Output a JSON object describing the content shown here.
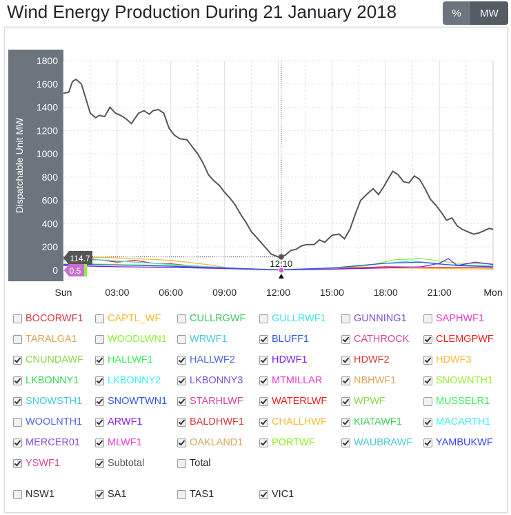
{
  "header": {
    "title": "Wind Energy Production During 21 January 2018",
    "unit_buttons": [
      {
        "label": "%",
        "active": false
      },
      {
        "label": "MW",
        "active": true
      }
    ]
  },
  "chart_data": {
    "type": "line",
    "title": "Wind Energy Production During 21 January 2018",
    "ylabel": "Dispatchable Unit MW",
    "xlabel": "",
    "ylim": [
      0,
      1800
    ],
    "yticks": [
      "0",
      "200",
      "400",
      "600",
      "800",
      "1000",
      "1200",
      "1400",
      "1600",
      "1800"
    ],
    "xticks": [
      "Sun",
      "03:00",
      "06:00",
      "09:00",
      "12:00",
      "15:00",
      "18:00",
      "21:00",
      "Mon"
    ],
    "x_unit": "hours since Sun 00:00",
    "grid": true,
    "cursor": {
      "time": "12:10",
      "subtotal_value": "114.7",
      "min_value": "0.5"
    },
    "series": [
      {
        "name": "Subtotal",
        "color": "#555555",
        "x": [
          0,
          0.3,
          0.5,
          0.7,
          1,
          1.3,
          1.5,
          1.8,
          2,
          2.3,
          2.6,
          2.9,
          3.2,
          3.5,
          3.8,
          4.2,
          4.5,
          4.8,
          5,
          5.3,
          5.6,
          5.9,
          6.2,
          6.5,
          6.9,
          7.2,
          7.5,
          7.8,
          8.1,
          8.4,
          8.7,
          9,
          9.3,
          9.6,
          9.9,
          10.2,
          10.5,
          10.8,
          11.2,
          11.6,
          12,
          12.17,
          12.4,
          12.7,
          13,
          13.3,
          13.6,
          14,
          14.3,
          14.6,
          15,
          15.4,
          15.7,
          16,
          16.3,
          16.6,
          17,
          17.3,
          17.6,
          17.9,
          18.2,
          18.4,
          18.7,
          19,
          19.3,
          19.6,
          19.9,
          20.2,
          20.5,
          20.8,
          21.1,
          21.4,
          21.7,
          22,
          22.3,
          22.6,
          22.9,
          23.2,
          23.5,
          23.8,
          24
        ],
        "y": [
          1520,
          1530,
          1620,
          1640,
          1600,
          1450,
          1350,
          1310,
          1330,
          1320,
          1400,
          1350,
          1330,
          1300,
          1260,
          1350,
          1370,
          1340,
          1370,
          1380,
          1350,
          1220,
          1160,
          1130,
          1120,
          1060,
          1000,
          920,
          820,
          770,
          730,
          670,
          620,
          560,
          480,
          410,
          330,
          280,
          210,
          140,
          115,
          114.7,
          130,
          170,
          180,
          210,
          220,
          220,
          260,
          240,
          300,
          310,
          270,
          350,
          480,
          600,
          660,
          700,
          650,
          720,
          800,
          850,
          820,
          760,
          750,
          810,
          780,
          700,
          610,
          560,
          500,
          430,
          450,
          380,
          350,
          330,
          310,
          320,
          340,
          360,
          350
        ]
      },
      {
        "name": "CAPTL_WF",
        "color": "#f5b82e",
        "x": [
          0,
          2,
          4,
          6,
          8,
          9,
          10,
          12,
          15,
          18,
          21,
          24
        ],
        "y": [
          110,
          110,
          100,
          85,
          50,
          25,
          10,
          5,
          10,
          20,
          15,
          10
        ]
      },
      {
        "name": "CLEMGPWF",
        "color": "#ee1c1c",
        "x": [
          0,
          1,
          2,
          3,
          4,
          5,
          6,
          7,
          9,
          12,
          15,
          18,
          21,
          24
        ],
        "y": [
          95,
          100,
          90,
          70,
          85,
          60,
          55,
          40,
          20,
          5,
          15,
          30,
          25,
          20
        ]
      },
      {
        "name": "LKBONNY2",
        "color": "#3ee6e6",
        "x": [
          0,
          2,
          4,
          6,
          8,
          10,
          12,
          15,
          18,
          19.5,
          21,
          24
        ],
        "y": [
          80,
          90,
          70,
          50,
          30,
          15,
          5,
          20,
          60,
          80,
          50,
          40
        ]
      },
      {
        "name": "SNOWNTH1",
        "color": "#8ff03a",
        "x": [
          0,
          3,
          6,
          9,
          12,
          15,
          17,
          18.5,
          20,
          22,
          24
        ],
        "y": [
          60,
          50,
          40,
          20,
          5,
          15,
          40,
          90,
          100,
          60,
          55
        ]
      },
      {
        "name": "HDWF1",
        "color": "#7a1cf0",
        "x": [
          0,
          3,
          6,
          9,
          12,
          15,
          18,
          20,
          21,
          21.5,
          22,
          23,
          24
        ],
        "y": [
          40,
          30,
          25,
          15,
          3,
          10,
          20,
          30,
          60,
          100,
          40,
          70,
          50
        ]
      },
      {
        "name": "BLUFF1",
        "color": "#2f55e8",
        "x": [
          0,
          3,
          6,
          9,
          12,
          15,
          18,
          20,
          22,
          24
        ],
        "y": [
          50,
          45,
          35,
          20,
          3,
          20,
          60,
          70,
          40,
          30
        ]
      }
    ]
  },
  "units": [
    {
      "label": "BOCORWF1",
      "color": "#d9363e",
      "checked": false
    },
    {
      "label": "CAPTL_WF",
      "color": "#f5b82e",
      "checked": false
    },
    {
      "label": "CULLRGWF",
      "color": "#3cc85f",
      "checked": false
    },
    {
      "label": "GULLRWF1",
      "color": "#3ee6e6",
      "checked": false
    },
    {
      "label": "GUNNING1",
      "color": "#7a4fd6",
      "checked": false
    },
    {
      "label": "SAPHWF1",
      "color": "#e83ec0",
      "checked": false
    },
    {
      "label": "TARALGA1",
      "color": "#d9a55a",
      "checked": false
    },
    {
      "label": "WOODLWN1",
      "color": "#8ff03a",
      "checked": false
    },
    {
      "label": "WRWF1",
      "color": "#45c8d8",
      "checked": false
    },
    {
      "label": "BLUFF1",
      "color": "#2f55e8",
      "checked": true
    },
    {
      "label": "CATHROCK",
      "color": "#d6449a",
      "checked": true
    },
    {
      "label": "CLEMGPWF",
      "color": "#ee1c1c",
      "checked": true
    },
    {
      "label": "CNUNDAWF",
      "color": "#8bd64a",
      "checked": true
    },
    {
      "label": "HALLWF1",
      "color": "#3cf05a",
      "checked": true
    },
    {
      "label": "HALLWF2",
      "color": "#4a6ad8",
      "checked": true
    },
    {
      "label": "HDWF1",
      "color": "#7a1cf0",
      "checked": true
    },
    {
      "label": "HDWF2",
      "color": "#d63a3a",
      "checked": true
    },
    {
      "label": "HDWF3",
      "color": "#f5b83a",
      "checked": true
    },
    {
      "label": "LKBONNY1",
      "color": "#3cd65a",
      "checked": true
    },
    {
      "label": "LKBONNY2",
      "color": "#3cf0f0",
      "checked": true
    },
    {
      "label": "LKBONNY3",
      "color": "#7a4fd6",
      "checked": true
    },
    {
      "label": "MTMILLAR",
      "color": "#f03cc8",
      "checked": true
    },
    {
      "label": "NBHWF1",
      "color": "#d9a55a",
      "checked": true
    },
    {
      "label": "SNOWNTH1",
      "color": "#9af03a",
      "checked": true
    },
    {
      "label": "SNOWSTH1",
      "color": "#45c8d8",
      "checked": true
    },
    {
      "label": "SNOWTWN1",
      "color": "#2f55e8",
      "checked": true
    },
    {
      "label": "STARHLWF",
      "color": "#d6449a",
      "checked": true
    },
    {
      "label": "WATERLWF",
      "color": "#f01c1c",
      "checked": true
    },
    {
      "label": "WPWF",
      "color": "#8bd64a",
      "checked": true
    },
    {
      "label": "MUSSELR1",
      "color": "#3cf05a",
      "checked": false
    },
    {
      "label": "WOOLNTH1",
      "color": "#4a6ad8",
      "checked": false
    },
    {
      "label": "ARWF1",
      "color": "#8a1cf0",
      "checked": true
    },
    {
      "label": "BALDHWF1",
      "color": "#d63a3a",
      "checked": true
    },
    {
      "label": "CHALLHWF",
      "color": "#f5b83a",
      "checked": true
    },
    {
      "label": "KIATAWF1",
      "color": "#3cd65a",
      "checked": true
    },
    {
      "label": "MACARTH1",
      "color": "#3cf0f0",
      "checked": true
    },
    {
      "label": "MERCER01",
      "color": "#8a4fd6",
      "checked": true
    },
    {
      "label": "MLWF1",
      "color": "#f03cc8",
      "checked": true
    },
    {
      "label": "OAKLAND1",
      "color": "#d9a55a",
      "checked": true
    },
    {
      "label": "PORTWF",
      "color": "#8af01c",
      "checked": true
    },
    {
      "label": "WAUBRAWF",
      "color": "#45c8d8",
      "checked": true
    },
    {
      "label": "YAMBUKWF",
      "color": "#2f40f0",
      "checked": true
    },
    {
      "label": "YSWF1",
      "color": "#d6449a",
      "checked": true
    },
    {
      "label": "Subtotal",
      "color": "#555555",
      "checked": true
    },
    {
      "label": "Total",
      "color": "#222222",
      "checked": false
    }
  ],
  "regions": [
    {
      "label": "NSW1",
      "checked": false
    },
    {
      "label": "SA1",
      "checked": true
    },
    {
      "label": "TAS1",
      "checked": false
    },
    {
      "label": "VIC1",
      "checked": true
    }
  ]
}
